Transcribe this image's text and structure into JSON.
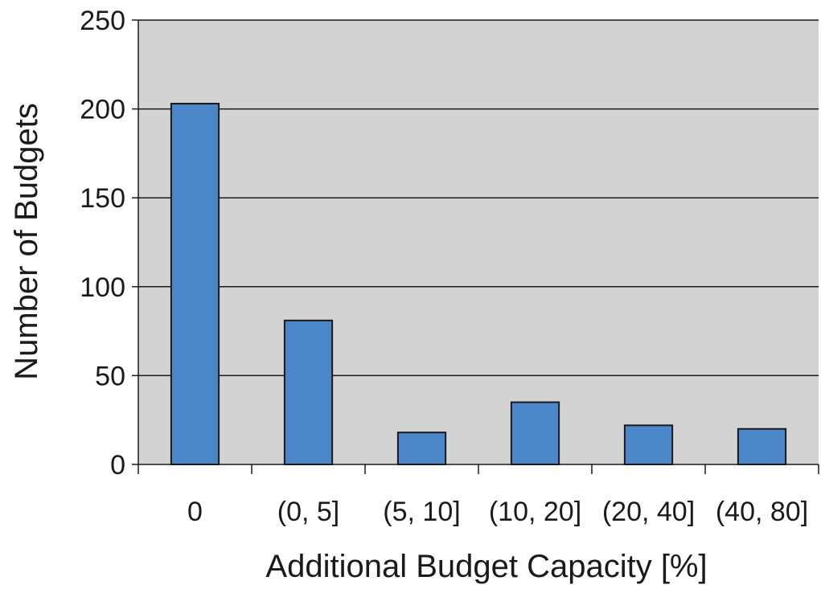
{
  "chart_data": {
    "type": "bar",
    "title": "",
    "xlabel": "Additional Budget Capacity [%]",
    "ylabel": "Number of Budgets",
    "categories": [
      "0",
      "(0, 5]",
      "(5, 10]",
      "(10, 20]",
      "(20, 40]",
      "(40, 80]"
    ],
    "values": [
      203,
      81,
      18,
      35,
      22,
      20
    ],
    "ylim": [
      0,
      250
    ],
    "yticks": [
      "0",
      "50",
      "100",
      "150",
      "200",
      "250"
    ],
    "grid": true,
    "legend": "none",
    "colors": {
      "bar_fill": "#4a86c8",
      "bar_stroke": "#1a1a1a",
      "plot_background": "#d3d3d3",
      "gridline": "#1a1a1a"
    }
  }
}
